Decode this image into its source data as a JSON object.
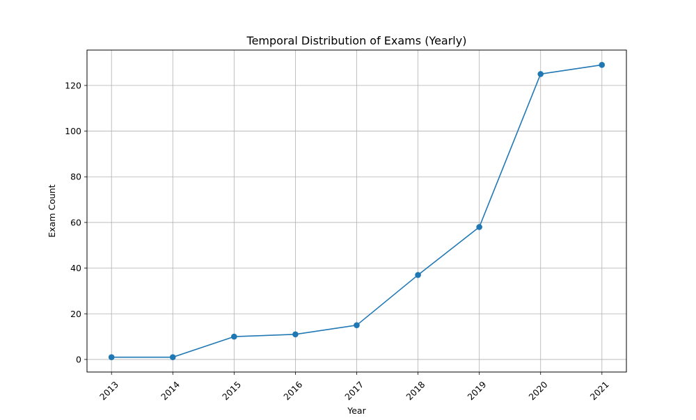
{
  "chart_data": {
    "type": "line",
    "title": "Temporal Distribution of Exams (Yearly)",
    "xlabel": "Year",
    "ylabel": "Exam Count",
    "categories": [
      "2013",
      "2014",
      "2015",
      "2016",
      "2017",
      "2018",
      "2019",
      "2020",
      "2021"
    ],
    "series": [
      {
        "name": "Exam Count",
        "values": [
          1,
          1,
          10,
          11,
          15,
          37,
          58,
          125,
          129
        ],
        "color": "#1f77b4",
        "marker": "circle"
      }
    ],
    "yticks": [
      0,
      20,
      40,
      60,
      80,
      100,
      120
    ],
    "ylim": [
      -5.5,
      135.5
    ],
    "grid": true,
    "xtick_rotation": 45,
    "legend": "none"
  }
}
